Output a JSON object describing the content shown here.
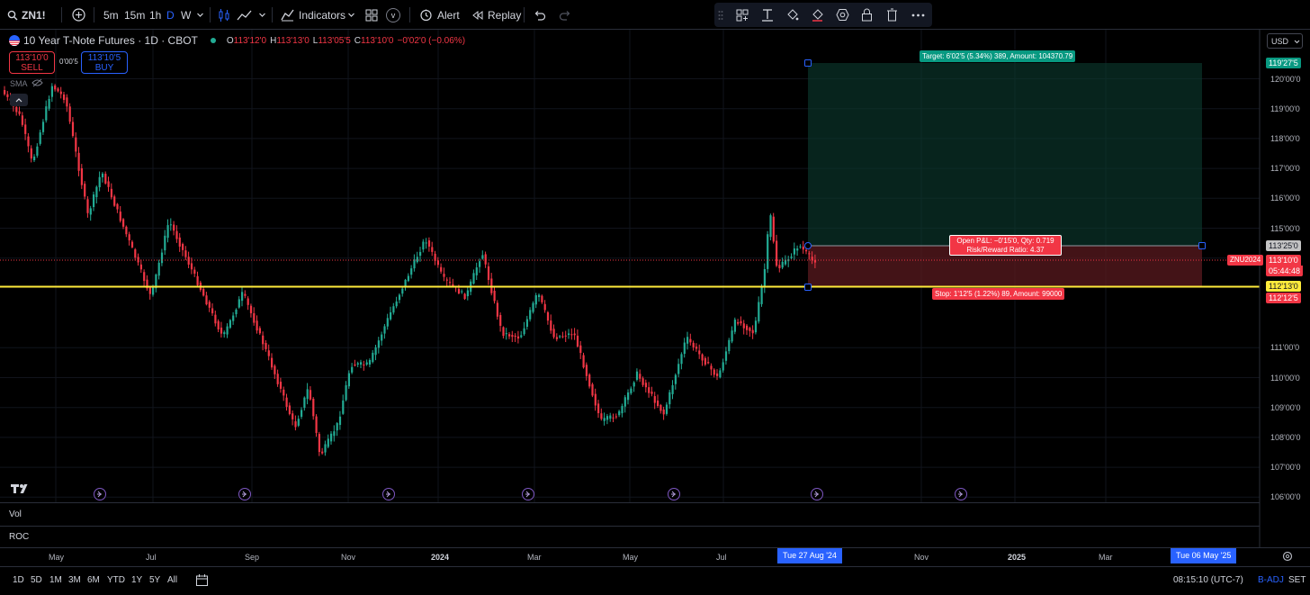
{
  "toolbar": {
    "symbol": "ZN1!",
    "intervals": [
      "5m",
      "15m",
      "1h",
      "D",
      "W"
    ],
    "indicators_label": "Indicators",
    "alert_label": "Alert",
    "replay_label": "Replay",
    "template_badge": "v"
  },
  "legend": {
    "title": "10 Year T-Note Futures · 1D · CBOT",
    "o_key": "O",
    "o_val": "113'12'0",
    "h_key": "H",
    "h_val": "113'13'0",
    "l_key": "L",
    "l_val": "113'05'5",
    "c_key": "C",
    "c_val": "113'10'0",
    "change": "−0'02'0 (−0.06%)",
    "sma_label": "SMA"
  },
  "trade": {
    "sell_price": "113'10'0",
    "sell_label": "SELL",
    "buy_price": "113'10'5",
    "buy_label": "BUY",
    "spread": "0'00'5"
  },
  "price_axis": {
    "currency": "USD",
    "labels": [
      {
        "text": "120'00'0",
        "value": 120
      },
      {
        "text": "119'00'0",
        "value": 119
      },
      {
        "text": "118'00'0",
        "value": 118
      },
      {
        "text": "117'00'0",
        "value": 117
      },
      {
        "text": "116'00'0",
        "value": 116
      },
      {
        "text": "115'00'0",
        "value": 115
      },
      {
        "text": "114'00'0",
        "value": 114
      },
      {
        "text": "111'00'0",
        "value": 111
      },
      {
        "text": "110'00'0",
        "value": 110
      },
      {
        "text": "109'00'0",
        "value": 109
      },
      {
        "text": "108'00'0",
        "value": 108
      },
      {
        "text": "107'00'0",
        "value": 107
      },
      {
        "text": "106'00'0",
        "value": 106
      }
    ],
    "tags": {
      "target": "119'27'5",
      "entry": "113'25'0",
      "last": "113'10'0",
      "countdown": "05:44:48",
      "hline": "112'13'0",
      "stop": "112'12'5"
    },
    "colors": {
      "up": "#22ab94",
      "down": "#f23645",
      "hline": "#ffeb3b",
      "accent": "#2962ff"
    }
  },
  "position": {
    "symbol_tag": "ZNU2024",
    "target_text": "Target: 6'02'5 (5.34%) 389, Amount: 104370.79",
    "pnl_line1": "Open P&L: −0'15'0, Qty: 0.719",
    "pnl_line2": "Risk/Reward Ratio: 4.37",
    "stop_text": "Stop: 1'12'5 (1.22%) 89, Amount: 99000"
  },
  "panes": {
    "vol": "Vol",
    "roc": "ROC"
  },
  "time_axis": {
    "labels": [
      {
        "text": "May",
        "bold": false
      },
      {
        "text": "Jul",
        "bold": false
      },
      {
        "text": "Sep",
        "bold": false
      },
      {
        "text": "Nov",
        "bold": false
      },
      {
        "text": "2024",
        "bold": true
      },
      {
        "text": "Mar",
        "bold": false
      },
      {
        "text": "May",
        "bold": false
      },
      {
        "text": "Jul",
        "bold": false
      },
      {
        "text": "Nov",
        "bold": false
      },
      {
        "text": "2025",
        "bold": true
      },
      {
        "text": "Mar",
        "bold": false
      }
    ],
    "crosshair_left": "Tue 27 Aug '24",
    "crosshair_right": "Tue 06 May '25"
  },
  "bottom": {
    "ranges": [
      "1D",
      "5D",
      "1M",
      "3M",
      "6M",
      "YTD",
      "1Y",
      "5Y",
      "All"
    ],
    "clock": "08:15:10 (UTC-7)",
    "badj": "B-ADJ",
    "set": "SET"
  }
}
